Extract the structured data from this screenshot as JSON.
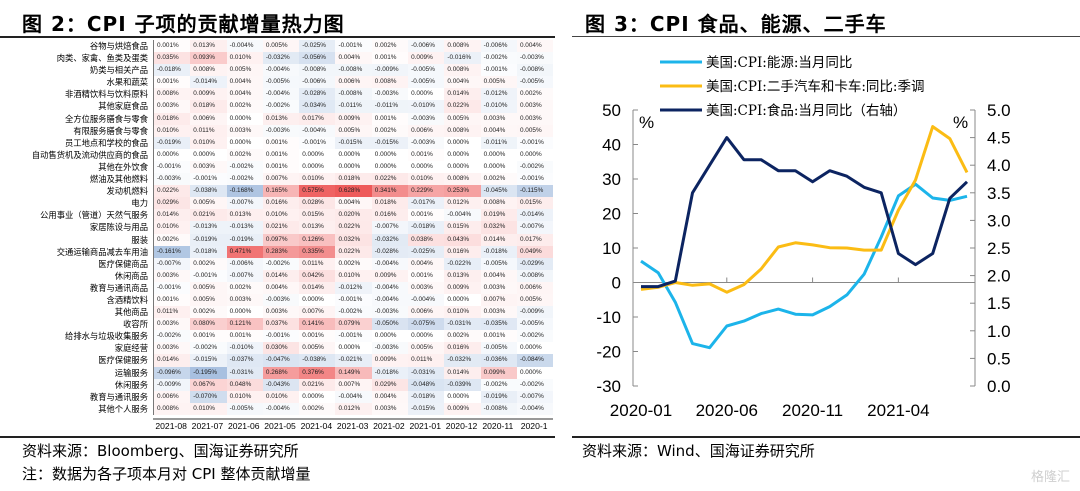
{
  "left_panel": {
    "title": "图 2：CPI 子项的贡献增量热力图",
    "source": "资料来源：Bloomberg、国海证券研究所",
    "note": "注：数据为各子项本月对 CPI 整体贡献增量"
  },
  "right_panel": {
    "title": "图 3：CPI 食品、能源、二手车",
    "source": "资料来源：Wind、国海证券研究所"
  },
  "watermark": "格隆汇",
  "chart_data": [
    {
      "type": "heatmap",
      "title": "CPI 子项的贡献增量热力图",
      "unit": "%",
      "columns": [
        "2021-08",
        "2021-07",
        "2021-06",
        "2021-05",
        "2021-04",
        "2021-03",
        "2021-02",
        "2021-01",
        "2020-12",
        "2020-11",
        "2020-1"
      ],
      "rows": [
        {
          "label": "谷物与烘焙食品",
          "values": [
            0.001,
            0.013,
            -0.004,
            0.005,
            -0.025,
            -0.001,
            0.002,
            -0.006,
            0.008,
            -0.006,
            0.004
          ]
        },
        {
          "label": "肉类、家禽、鱼类及蛋类",
          "values": [
            0.035,
            0.093,
            0.01,
            -0.032,
            -0.056,
            0.004,
            0.001,
            0.009,
            -0.016,
            -0.002,
            -0.003
          ]
        },
        {
          "label": "奶类与相关产品",
          "values": [
            -0.018,
            0.008,
            0.005,
            -0.004,
            -0.008,
            -0.008,
            -0.009,
            -0.005,
            0.008,
            -0.001,
            -0.008
          ]
        },
        {
          "label": "水果和蔬菜",
          "values": [
            0.001,
            -0.014,
            0.004,
            -0.005,
            -0.006,
            0.006,
            0.008,
            -0.005,
            0.004,
            0.005,
            -0.005
          ]
        },
        {
          "label": "非酒精饮料与饮料原料",
          "values": [
            0.008,
            0.009,
            0.004,
            -0.004,
            -0.028,
            -0.008,
            -0.003,
            0.0,
            0.014,
            -0.012,
            0.002
          ]
        },
        {
          "label": "其他家庭食品",
          "values": [
            0.003,
            0.018,
            0.002,
            -0.002,
            -0.034,
            -0.011,
            -0.011,
            -0.01,
            0.022,
            -0.01,
            0.003
          ]
        },
        {
          "label": "全方位服务膳食与零食",
          "values": [
            0.018,
            0.006,
            0.0,
            0.013,
            0.017,
            0.009,
            0.001,
            -0.003,
            0.005,
            0.003,
            0.003
          ]
        },
        {
          "label": "有限服务膳食与零食",
          "values": [
            0.01,
            0.011,
            0.003,
            -0.003,
            -0.004,
            0.005,
            0.002,
            0.006,
            0.008,
            0.004,
            0.005
          ]
        },
        {
          "label": "员工地点和学校的食品",
          "values": [
            -0.019,
            0.01,
            0.0,
            0.001,
            -0.001,
            -0.015,
            -0.015,
            -0.003,
            0.0,
            -0.011,
            -0.001
          ]
        },
        {
          "label": "自动售货机及流动供应商的食品",
          "values": [
            0.0,
            0.0,
            0.002,
            0.001,
            0.0,
            0.0,
            0.0,
            0.001,
            0.0,
            0.0,
            0.0
          ]
        },
        {
          "label": "其他在外饮食",
          "values": [
            -0.001,
            0.003,
            -0.002,
            0.001,
            0.0,
            0.0,
            0.0,
            0.0,
            0.0,
            0.0,
            -0.002
          ]
        },
        {
          "label": "燃油及其他燃料",
          "values": [
            -0.003,
            -0.001,
            -0.002,
            0.007,
            0.01,
            0.018,
            0.022,
            0.01,
            0.008,
            0.002,
            -0.001
          ]
        },
        {
          "label": "发动机燃料",
          "values": [
            0.022,
            -0.038,
            -0.168,
            0.165,
            0.575,
            0.628,
            0.341,
            0.229,
            0.253,
            -0.045,
            -0.115
          ]
        },
        {
          "label": "电力",
          "values": [
            0.029,
            0.005,
            -0.007,
            0.016,
            0.028,
            0.004,
            0.018,
            -0.017,
            0.012,
            0.008,
            0.015
          ]
        },
        {
          "label": "公用事业（管道）天然气服务",
          "values": [
            0.014,
            0.021,
            0.013,
            0.01,
            0.015,
            0.02,
            0.016,
            0.001,
            -0.004,
            0.019,
            -0.014
          ]
        },
        {
          "label": "家居陈设与用品",
          "values": [
            0.01,
            -0.013,
            -0.013,
            0.021,
            0.013,
            0.022,
            -0.007,
            -0.018,
            0.015,
            0.032,
            -0.007
          ]
        },
        {
          "label": "服装",
          "values": [
            0.002,
            -0.019,
            -0.019,
            0.097,
            0.126,
            0.032,
            -0.032,
            0.038,
            0.043,
            0.014,
            0.017
          ]
        },
        {
          "label": "交通运输商品减去车用油",
          "values": [
            -0.161,
            -0.018,
            0.471,
            0.283,
            0.335,
            0.022,
            -0.028,
            -0.025,
            0.016,
            -0.018,
            0.049
          ]
        },
        {
          "label": "医疗保健商品",
          "values": [
            -0.007,
            0.002,
            -0.006,
            -0.002,
            0.011,
            0.002,
            -0.004,
            0.004,
            -0.022,
            -0.005,
            -0.029
          ]
        },
        {
          "label": "休闲商品",
          "values": [
            0.003,
            -0.001,
            -0.007,
            0.014,
            0.042,
            0.01,
            0.009,
            0.001,
            0.013,
            0.004,
            -0.008
          ]
        },
        {
          "label": "教育与通讯商品",
          "values": [
            -0.001,
            0.005,
            0.002,
            0.004,
            0.014,
            -0.012,
            -0.004,
            0.003,
            0.009,
            0.003,
            0.006
          ]
        },
        {
          "label": "含酒精饮料",
          "values": [
            0.001,
            0.005,
            0.003,
            -0.003,
            0.0,
            -0.001,
            -0.004,
            -0.004,
            0.0,
            0.007,
            0.005
          ]
        },
        {
          "label": "其他商品",
          "values": [
            0.011,
            0.002,
            0.0,
            0.003,
            0.007,
            -0.002,
            -0.003,
            0.006,
            0.01,
            0.003,
            -0.009
          ]
        },
        {
          "label": "收容所",
          "values": [
            0.003,
            0.08,
            0.121,
            0.037,
            0.141,
            0.079,
            -0.05,
            -0.075,
            -0.031,
            -0.035,
            -0.005
          ]
        },
        {
          "label": "给排水与垃圾收集服务",
          "values": [
            -0.002,
            0.001,
            0.001,
            -0.001,
            0.001,
            -0.001,
            0.0,
            0.0,
            0.002,
            0.001,
            -0.002
          ]
        },
        {
          "label": "家庭经营",
          "values": [
            0.003,
            -0.002,
            -0.01,
            0.03,
            0.005,
            0.0,
            -0.003,
            0.005,
            0.016,
            -0.005,
            0.0
          ]
        },
        {
          "label": "医疗保健服务",
          "values": [
            0.014,
            -0.015,
            -0.037,
            -0.047,
            -0.038,
            -0.021,
            0.009,
            0.011,
            -0.032,
            -0.036,
            -0.084
          ]
        },
        {
          "label": "运输服务",
          "values": [
            -0.096,
            -0.195,
            -0.031,
            0.268,
            0.376,
            0.149,
            -0.018,
            -0.031,
            0.014,
            0.099,
            0.0
          ]
        },
        {
          "label": "休闲服务",
          "values": [
            -0.009,
            0.067,
            0.048,
            -0.043,
            0.021,
            0.007,
            0.029,
            -0.048,
            -0.039,
            -0.002,
            -0.002
          ]
        },
        {
          "label": "教育与通讯服务",
          "values": [
            0.006,
            -0.07,
            0.01,
            0.01,
            0.0,
            -0.004,
            0.004,
            -0.018,
            0.0,
            -0.019,
            -0.007
          ]
        },
        {
          "label": "其他个人服务",
          "values": [
            0.008,
            0.01,
            -0.005,
            -0.004,
            0.002,
            0.012,
            0.003,
            -0.015,
            0.009,
            -0.008,
            -0.004
          ]
        }
      ],
      "color_scale": {
        "negative": "#4f7fc0",
        "zero": "#ffffff",
        "positive": "#ee5a5a"
      }
    },
    {
      "type": "line",
      "title": "CPI 食品、能源、二手车",
      "x": [
        "2020-01",
        "2020-02",
        "2020-03",
        "2020-04",
        "2020-05",
        "2020-06",
        "2020-07",
        "2020-08",
        "2020-09",
        "2020-10",
        "2020-11",
        "2020-12",
        "2021-01",
        "2021-02",
        "2021-03",
        "2021-04",
        "2021-05",
        "2021-06",
        "2021-07",
        "2021-08"
      ],
      "xticks": [
        "2020-01",
        "2020-06",
        "2020-11",
        "2021-04"
      ],
      "left_axis": {
        "label": "%",
        "ylim": [
          -30,
          50
        ],
        "ticks": [
          50,
          40,
          30,
          20,
          10,
          0,
          -10,
          -20,
          -30
        ]
      },
      "right_axis": {
        "label": "%",
        "ylim": [
          0.0,
          5.0
        ],
        "ticks": [
          "5.0",
          "4.5",
          "4.0",
          "3.5",
          "3.0",
          "2.5",
          "2.0",
          "1.5",
          "1.0",
          "0.5",
          "0.0"
        ]
      },
      "legend_position": "top",
      "series": [
        {
          "name": "美国:CPI:能源:当月同比",
          "axis": "left",
          "color": "#1cb4ea",
          "values": [
            6.2,
            2.8,
            -5.7,
            -17.7,
            -18.9,
            -12.6,
            -11.2,
            -9.0,
            -7.7,
            -9.2,
            -9.4,
            -7.0,
            -3.6,
            2.4,
            13.2,
            25.1,
            28.5,
            24.5,
            23.8,
            25.0
          ]
        },
        {
          "name": "美国:CPI:二手汽车和卡车:同比:季调",
          "axis": "left",
          "color": "#fbbc14",
          "values": [
            -2.0,
            -1.4,
            0.0,
            -0.8,
            -0.4,
            -2.8,
            -0.6,
            3.9,
            10.3,
            11.5,
            10.9,
            10.1,
            10.0,
            9.4,
            9.4,
            21.0,
            29.7,
            45.2,
            41.7,
            31.9
          ]
        },
        {
          "name": "美国:CPI:食品:当月同比（右轴）",
          "axis": "right",
          "color": "#0c2461",
          "values": [
            1.8,
            1.8,
            1.9,
            3.5,
            4.0,
            4.5,
            4.1,
            4.1,
            3.9,
            3.9,
            3.7,
            3.9,
            3.8,
            3.6,
            3.5,
            2.4,
            2.2,
            2.4,
            3.4,
            3.7
          ]
        }
      ]
    }
  ]
}
